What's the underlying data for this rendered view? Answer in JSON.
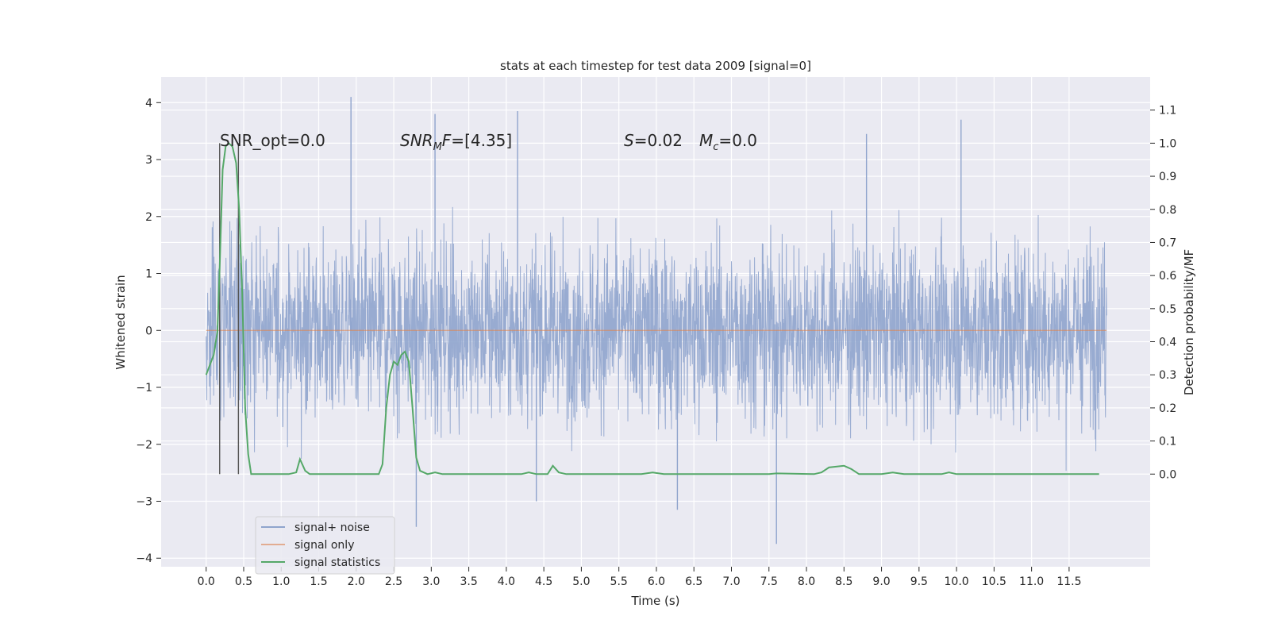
{
  "chart_data": {
    "type": "line",
    "title": "stats at each timestep for test data 2009 [signal=0]",
    "xlabel": "Time (s)",
    "ylabel": "Whitened strain",
    "ylabel_right": "Detection probability/MF",
    "xlim": [
      -0.6,
      12.58
    ],
    "ylim": [
      -4.15,
      4.45
    ],
    "ylim_right": [
      -0.28,
      1.2
    ],
    "xticks": [
      0.0,
      0.5,
      1.0,
      1.5,
      2.0,
      2.5,
      3.0,
      3.5,
      4.0,
      4.5,
      5.0,
      5.5,
      6.0,
      6.5,
      7.0,
      7.5,
      8.0,
      8.5,
      9.0,
      9.5,
      10.0,
      10.5,
      11.0,
      11.5
    ],
    "xtick_labels": [
      "0.0",
      "0.5",
      "1.0",
      "1.5",
      "2.0",
      "2.5",
      "3.0",
      "3.5",
      "4.0",
      "4.5",
      "5.0",
      "5.5",
      "6.0",
      "6.5",
      "7.0",
      "7.5",
      "8.0",
      "8.5",
      "9.0",
      "9.5",
      "10.0",
      "10.5",
      "11.0",
      "11.5"
    ],
    "yticks": [
      -4,
      -3,
      -2,
      -1,
      0,
      1,
      2,
      3,
      4
    ],
    "ytick_labels": [
      "−4",
      "−3",
      "−2",
      "−1",
      "0",
      "1",
      "2",
      "3",
      "4"
    ],
    "yticks_right": [
      0.0,
      0.1,
      0.2,
      0.3,
      0.4,
      0.5,
      0.6,
      0.7,
      0.8,
      0.9,
      1.0,
      1.1
    ],
    "ytick_labels_right": [
      "0.0",
      "0.1",
      "0.2",
      "0.3",
      "0.4",
      "0.5",
      "0.6",
      "0.7",
      "0.8",
      "0.9",
      "1.0",
      "1.1"
    ],
    "grid": true,
    "series": [
      {
        "name": "signal+ noise",
        "axis": "left",
        "style": "noise-band",
        "x_range": [
          0.0,
          12.0
        ],
        "sample_rate": 250,
        "seed": 2009,
        "spikes": [
          {
            "x": 1.93,
            "y": 4.1
          },
          {
            "x": 4.15,
            "y": 3.85
          },
          {
            "x": 3.05,
            "y": 3.8
          },
          {
            "x": 10.06,
            "y": 3.7
          },
          {
            "x": 8.8,
            "y": 3.45
          },
          {
            "x": 7.6,
            "y": -3.75
          },
          {
            "x": 2.8,
            "y": -3.45
          },
          {
            "x": 6.28,
            "y": -3.15
          },
          {
            "x": 4.4,
            "y": -3.0
          }
        ]
      },
      {
        "name": "signal only",
        "axis": "left",
        "x": [
          0.0,
          12.0
        ],
        "y": [
          0.0,
          0.0
        ]
      },
      {
        "name": "signal statistics",
        "axis": "right",
        "x": [
          0.0,
          0.1,
          0.15,
          0.18,
          0.22,
          0.26,
          0.3,
          0.35,
          0.4,
          0.44,
          0.48,
          0.52,
          0.56,
          0.6,
          0.64,
          0.7,
          1.1,
          1.2,
          1.25,
          1.32,
          1.38,
          1.45,
          1.6,
          2.3,
          2.35,
          2.4,
          2.45,
          2.5,
          2.55,
          2.6,
          2.65,
          2.7,
          2.75,
          2.8,
          2.85,
          2.95,
          3.05,
          3.15,
          3.25,
          3.4,
          4.2,
          4.3,
          4.4,
          4.55,
          4.62,
          4.7,
          4.8,
          5.0,
          5.8,
          5.95,
          6.1,
          6.25,
          6.4,
          7.0,
          7.5,
          7.6,
          8.1,
          8.2,
          8.3,
          8.5,
          8.6,
          8.7,
          9.0,
          9.15,
          9.3,
          9.8,
          9.9,
          10.0,
          10.1,
          11.3,
          11.5,
          11.9
        ],
        "y": [
          0.3,
          0.36,
          0.43,
          0.62,
          0.92,
          0.99,
          1.0,
          0.99,
          0.94,
          0.8,
          0.55,
          0.2,
          0.06,
          0.0,
          0.0,
          0.0,
          0.0,
          0.005,
          0.045,
          0.01,
          0.0,
          0.0,
          0.0,
          0.0,
          0.03,
          0.2,
          0.3,
          0.34,
          0.33,
          0.36,
          0.37,
          0.34,
          0.2,
          0.05,
          0.01,
          0.0,
          0.005,
          0.0,
          0.0,
          0.0,
          0.0,
          0.005,
          0.0,
          0.0,
          0.025,
          0.005,
          0.0,
          0.0,
          0.0,
          0.005,
          0.0,
          0.0,
          0.0,
          0.0,
          0.0,
          0.002,
          0.0,
          0.005,
          0.02,
          0.025,
          0.015,
          0.0,
          0.0,
          0.005,
          0.0,
          0.0,
          0.005,
          0.0,
          0.0,
          0.0,
          0.0,
          0.0
        ]
      }
    ],
    "vlines": [
      0.18,
      0.43
    ],
    "annotations": [
      {
        "id": "snr-opt",
        "text": "SNR_opt=0.0",
        "x": 0.2,
        "y": 3.2
      },
      {
        "id": "snr-mf",
        "text": "[4.35]",
        "x": 2.6,
        "y": 3.2
      },
      {
        "id": "stat-s",
        "text": "0.02",
        "x": 5.6,
        "y": 3.2
      },
      {
        "id": "stat-mc",
        "text": "0.0",
        "x": 6.6,
        "y": 3.2
      }
    ],
    "legend": {
      "placement": "lower-left",
      "entries": [
        "signal+ noise",
        "signal only",
        "signal statistics"
      ]
    },
    "colors": {
      "background": "#eaeaf2",
      "grid": "#ffffff",
      "noise": "#8fa4cd",
      "signal": "#dd8452",
      "stats": "#55a868",
      "vline": "#555555",
      "text": "#262626"
    }
  }
}
